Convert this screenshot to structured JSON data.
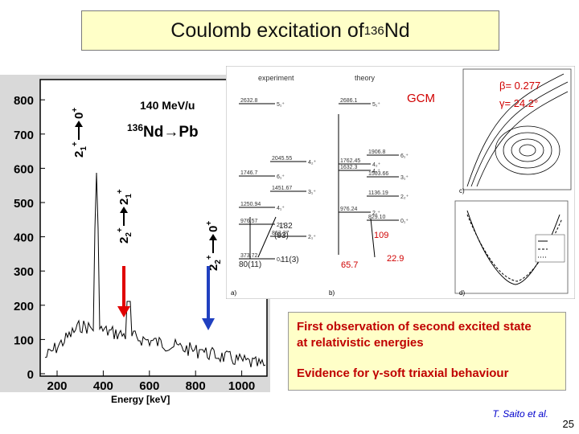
{
  "title": {
    "text": "Coulomb excitation of ",
    "iso_mass": "136",
    "iso_symbol": "Nd"
  },
  "spectrum": {
    "beam_energy": "140 MeV/u",
    "reaction": {
      "mass": "136",
      "text": "Nd→Pb"
    },
    "x_label": "Energy [keV]",
    "x_ticks": [
      "200",
      "400",
      "600",
      "800",
      "1000"
    ],
    "y_ticks": [
      "0",
      "100",
      "200",
      "300",
      "400",
      "500",
      "600",
      "700",
      "800"
    ],
    "peak_labels": {
      "p1": {
        "a": "2",
        "a_sub": "1",
        "a_sup": "+",
        "b": "0",
        "b_sup": "+"
      },
      "p2": {
        "a": "2",
        "a_sub": "2",
        "a_sup": "+",
        "b": "2",
        "b_sub": "1",
        "b_sup": "+"
      },
      "p3": {
        "a": "2",
        "a_sub": "2",
        "a_sup": "+",
        "b": "0",
        "b_sup": "+"
      }
    }
  },
  "figure": {
    "experiment_label": "experiment",
    "theory_label": "theory",
    "gcm_label": "GCM",
    "beta": "β= 0.277",
    "gamma": "γ= 24.2°",
    "exp_levels": [
      "2632.8",
      "2045.55",
      "1746.7",
      "1451.67",
      "1250.94",
      "976.57",
      "862.37",
      "373.72"
    ],
    "exp_spins": [
      "5₁⁺",
      "4₂⁺",
      "6₁⁺",
      "3₁⁺",
      "4₁⁺",
      "2₂⁺",
      "2₁⁺",
      "0₁⁺"
    ],
    "theory_levels": [
      "2686.1",
      "1906.8",
      "1762.45",
      "1503.66",
      "1632.3",
      "1136.19",
      "976.24",
      "829.10"
    ],
    "theory_spins": [
      "5₁⁺",
      "6₁⁺",
      "4₂⁺",
      "3₁⁺",
      "4₁⁺",
      "2₂⁺",
      "2₁⁺",
      "0₁⁺"
    ],
    "exp_be2": [
      "182",
      "(93)",
      "80(11)",
      "11(3)"
    ],
    "theory_be2": [
      "109",
      "65.7",
      "22.9"
    ],
    "corner_labels": [
      "a)",
      "b)",
      "c)",
      "d)"
    ]
  },
  "info": {
    "line1": "First observation of second excited state",
    "line2": "at relativistic energies",
    "line3": "Evidence for γ-soft triaxial behaviour"
  },
  "credit": "T. Saito et al.",
  "page_number": "25"
}
